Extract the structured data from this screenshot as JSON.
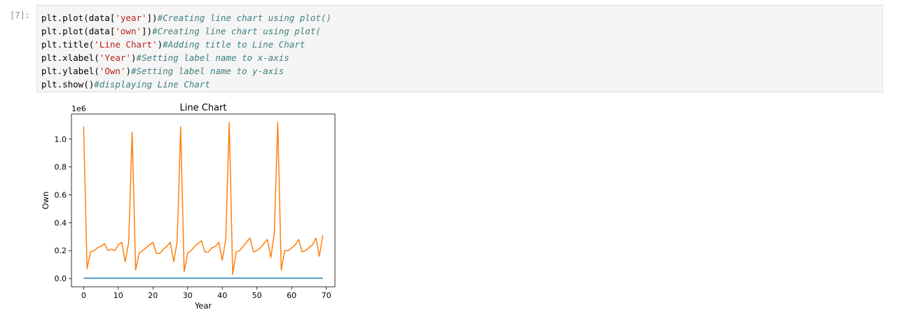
{
  "cell": {
    "prompt": "[7]:",
    "code_lines": [
      {
        "code": "plt.plot(data[",
        "str": "'year'",
        "after": "])",
        "comment": "#Creating line chart using plot()"
      },
      {
        "code": "plt.plot(data[",
        "str": "'own'",
        "after": "])",
        "comment": "#Creating line chart using plot("
      },
      {
        "code": "plt.title(",
        "str": "'Line Chart'",
        "after": ")",
        "comment": "#Adding title to Line Chart"
      },
      {
        "code": "plt.xlabel(",
        "str": "'Year'",
        "after": ")",
        "comment": "#Setting label name to x-axis"
      },
      {
        "code": "plt.ylabel(",
        "str": "'Own'",
        "after": ")",
        "comment": "#Setting label name to y-axis"
      },
      {
        "code": "plt.show()",
        "str": "",
        "after": "",
        "comment": "#displaying Line Chart"
      }
    ]
  },
  "chart_data": {
    "type": "line",
    "title": "Line Chart",
    "xlabel": "Year",
    "ylabel": "Own",
    "y_offset_label": "1e6",
    "xlim": [
      -3.5,
      72.5
    ],
    "ylim": [
      -0.06,
      1.18
    ],
    "x_ticks": [
      0,
      10,
      20,
      30,
      40,
      50,
      60,
      70
    ],
    "y_ticks": [
      0.0,
      0.2,
      0.4,
      0.6,
      0.8,
      1.0
    ],
    "y_tick_labels": [
      "0.0",
      "0.2",
      "0.4",
      "0.6",
      "0.8",
      "1.0"
    ],
    "grid": false,
    "series": [
      {
        "color": "#1f77b4",
        "x_start": 0,
        "values": [
          0.002,
          0.002,
          0.002,
          0.002,
          0.002,
          0.002,
          0.002,
          0.002,
          0.002,
          0.002,
          0.002,
          0.002,
          0.002,
          0.002,
          0.002,
          0.002,
          0.002,
          0.002,
          0.002,
          0.002,
          0.002,
          0.002,
          0.002,
          0.002,
          0.002,
          0.002,
          0.002,
          0.002,
          0.002,
          0.002,
          0.002,
          0.002,
          0.002,
          0.002,
          0.002,
          0.002,
          0.002,
          0.002,
          0.002,
          0.002,
          0.002,
          0.002,
          0.002,
          0.002,
          0.002,
          0.002,
          0.002,
          0.002,
          0.002,
          0.002,
          0.002,
          0.002,
          0.002,
          0.002,
          0.002,
          0.002,
          0.002,
          0.002,
          0.002,
          0.002,
          0.002,
          0.002,
          0.002,
          0.002,
          0.002,
          0.002,
          0.002,
          0.002,
          0.002,
          0.002
        ]
      },
      {
        "color": "#ff7f0e",
        "x_start": 0,
        "values": [
          1.09,
          0.07,
          0.19,
          0.2,
          0.22,
          0.23,
          0.25,
          0.2,
          0.21,
          0.2,
          0.24,
          0.26,
          0.12,
          0.26,
          1.05,
          0.06,
          0.18,
          0.2,
          0.22,
          0.24,
          0.26,
          0.18,
          0.18,
          0.21,
          0.23,
          0.26,
          0.12,
          0.27,
          1.09,
          0.05,
          0.18,
          0.2,
          0.23,
          0.25,
          0.27,
          0.19,
          0.19,
          0.22,
          0.23,
          0.26,
          0.13,
          0.28,
          1.12,
          0.03,
          0.19,
          0.2,
          0.23,
          0.26,
          0.29,
          0.19,
          0.2,
          0.22,
          0.25,
          0.28,
          0.15,
          0.32,
          1.12,
          0.06,
          0.2,
          0.2,
          0.22,
          0.24,
          0.28,
          0.19,
          0.2,
          0.22,
          0.24,
          0.29,
          0.16,
          0.31
        ]
      }
    ]
  }
}
